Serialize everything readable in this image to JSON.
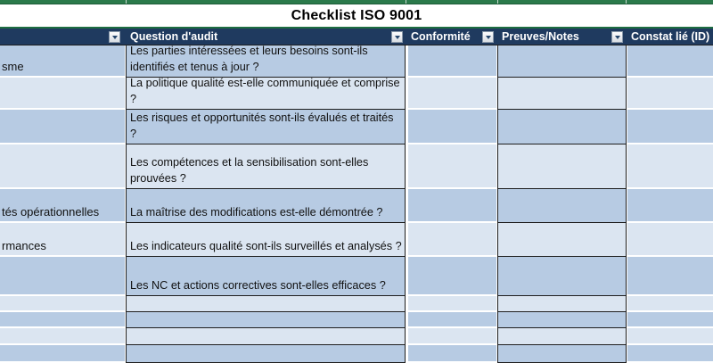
{
  "title": "Checklist ISO 9001",
  "columns": {
    "left": {
      "header": "",
      "filter": true
    },
    "question": {
      "header": "Question d'audit",
      "filter": true
    },
    "conformite": {
      "header": "Conformité",
      "filter": true
    },
    "preuves": {
      "header": "Preuves/Notes",
      "filter": true
    },
    "constat": {
      "header": "Constat lié (ID)",
      "filter": false
    }
  },
  "rows": [
    {
      "left": "sme",
      "question": "Les parties intéressées et leurs besoins sont-ils identifiés et tenus à jour ?",
      "conformite": "",
      "preuves": "",
      "constat": ""
    },
    {
      "left": "",
      "question": "La politique qualité est-elle communiquée et comprise ?",
      "conformite": "",
      "preuves": "",
      "constat": ""
    },
    {
      "left": "",
      "question": "Les risques et opportunités sont-ils évalués et traités ?",
      "conformite": "",
      "preuves": "",
      "constat": ""
    },
    {
      "left": "",
      "question": "Les compétences et la sensibilisation sont-elles prouvées ?",
      "conformite": "",
      "preuves": "",
      "constat": ""
    },
    {
      "left": "tés opérationnelles",
      "question": "La maîtrise des modifications est-elle démontrée ?",
      "conformite": "",
      "preuves": "",
      "constat": ""
    },
    {
      "left": "rmances",
      "question": "Les indicateurs qualité sont-ils surveillés et analysés ?",
      "conformite": "",
      "preuves": "",
      "constat": ""
    },
    {
      "left": "",
      "question": "Les NC et actions correctives sont-elles efficaces ?",
      "conformite": "",
      "preuves": "",
      "constat": ""
    },
    {
      "left": "",
      "question": "",
      "conformite": "",
      "preuves": "",
      "constat": ""
    },
    {
      "left": "",
      "question": "",
      "conformite": "",
      "preuves": "",
      "constat": ""
    },
    {
      "left": "",
      "question": "",
      "conformite": "",
      "preuves": "",
      "constat": ""
    },
    {
      "left": "",
      "question": "",
      "conformite": "",
      "preuves": "",
      "constat": ""
    }
  ],
  "colors": {
    "banner_green": "#2b7a4b",
    "banner_green_edge": "#1c5c39",
    "header_navy": "#1f3a5f",
    "band_dark": "#b7cbe3",
    "band_light": "#dbe5f1",
    "grid_black": "#1f1f1f"
  }
}
